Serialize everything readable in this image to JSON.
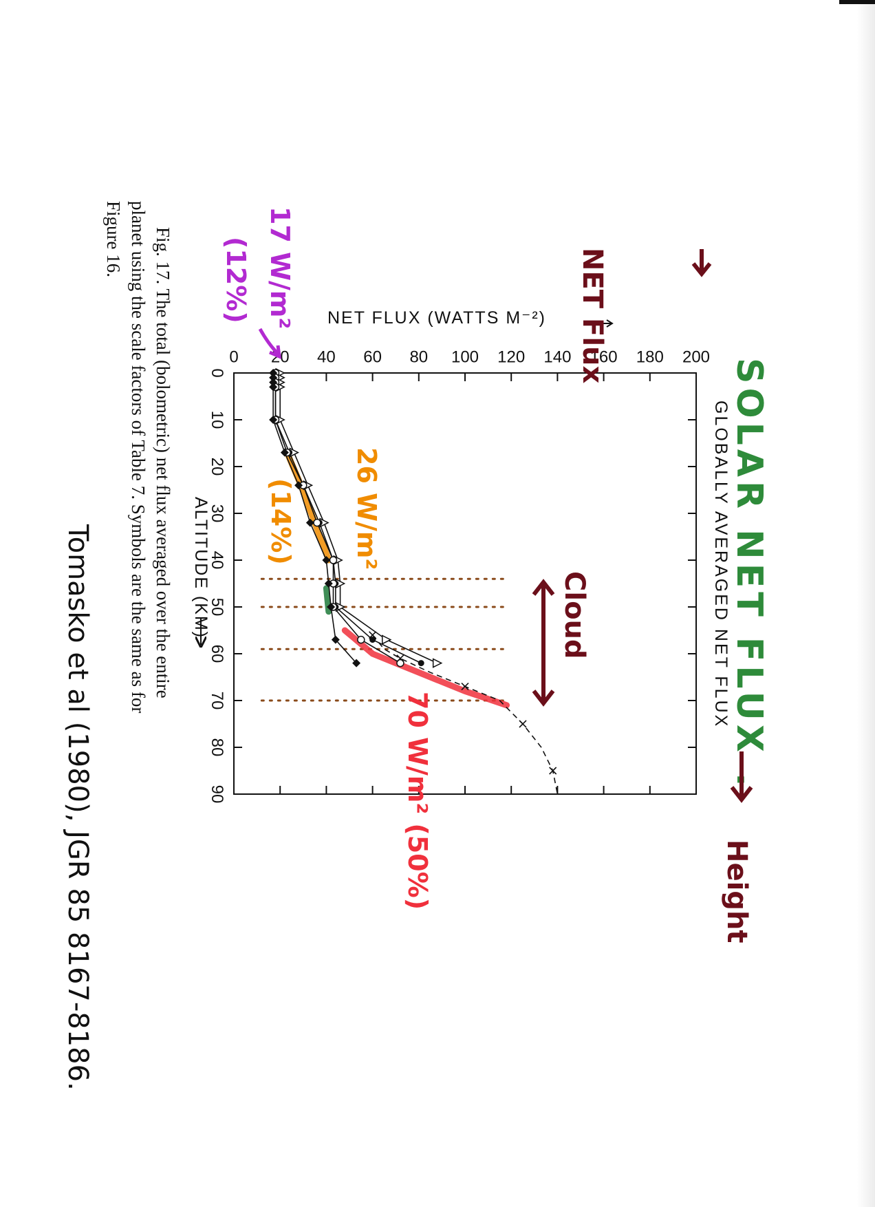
{
  "chart_data": {
    "type": "line",
    "title": "GLOBALLY AVERAGED NET FLUX",
    "xlabel": "ALTITUDE (KM)",
    "ylabel": "NET FLUX (WATTS M⁻²)",
    "xlim": [
      0,
      90
    ],
    "ylim": [
      0,
      200
    ],
    "x_ticks": [
      "0",
      "10",
      "20",
      "30",
      "40",
      "50",
      "60",
      "70",
      "80",
      "90"
    ],
    "y_ticks": [
      "0",
      "20",
      "40",
      "60",
      "80",
      "100",
      "120",
      "140",
      "160",
      "180",
      "200"
    ],
    "x": [
      0,
      1,
      2,
      3,
      10,
      17,
      24,
      32,
      40,
      45,
      50,
      57,
      62
    ],
    "series": [
      {
        "marker": "triangle-open",
        "values": [
          20,
          20,
          20,
          20,
          20,
          26,
          32,
          39,
          45,
          46,
          46,
          66,
          88
        ]
      },
      {
        "marker": "circle-filled",
        "values": [
          18,
          18,
          18,
          18,
          18,
          24,
          30,
          37,
          43,
          44,
          44,
          60,
          81
        ]
      },
      {
        "marker": "circle-open",
        "values": [
          18,
          18,
          18,
          18,
          18,
          23,
          30,
          36,
          43,
          43,
          43,
          55,
          72
        ]
      },
      {
        "marker": "diamond-filled",
        "values": [
          17,
          17,
          17,
          17,
          17,
          22,
          28,
          33,
          40,
          41,
          42,
          44,
          53
        ]
      }
    ],
    "dashed_series": {
      "marker": "x",
      "x": [
        56,
        59,
        61,
        64,
        67,
        70,
        75,
        80,
        85,
        90
      ],
      "values": [
        60,
        65,
        72,
        85,
        100,
        115,
        125,
        133,
        138,
        140
      ]
    }
  },
  "caption": {
    "line1": "Fig. 17.  The total (bolometric) net flux averaged over the entire",
    "line2": "planet using the scale factors of Table 7. Symbols are the same as for",
    "line3": "Figure 16."
  },
  "annotations": {
    "headline": "SOLAR NET FLUX .",
    "net_flux": "NET Flux",
    "cloud": "Cloud",
    "height": "Height",
    "val_17": "17 W/m²",
    "pct_12": "(12%)",
    "val_26": "26 W/m²",
    "pct_14": "(14%)",
    "val_70": "70 W/m² (50%)",
    "reference": "Tomasko et al (1980), JGR 85 8167-8186."
  },
  "colors": {
    "green": "#2e8b3a",
    "maroon": "#6b0f1a",
    "purple": "#b22ad1",
    "orange": "#f08c00",
    "red": "#f0303c",
    "dark_green": "#1f7a3a",
    "cloud_dots": "#8a4a1a",
    "ink": "#111111"
  }
}
